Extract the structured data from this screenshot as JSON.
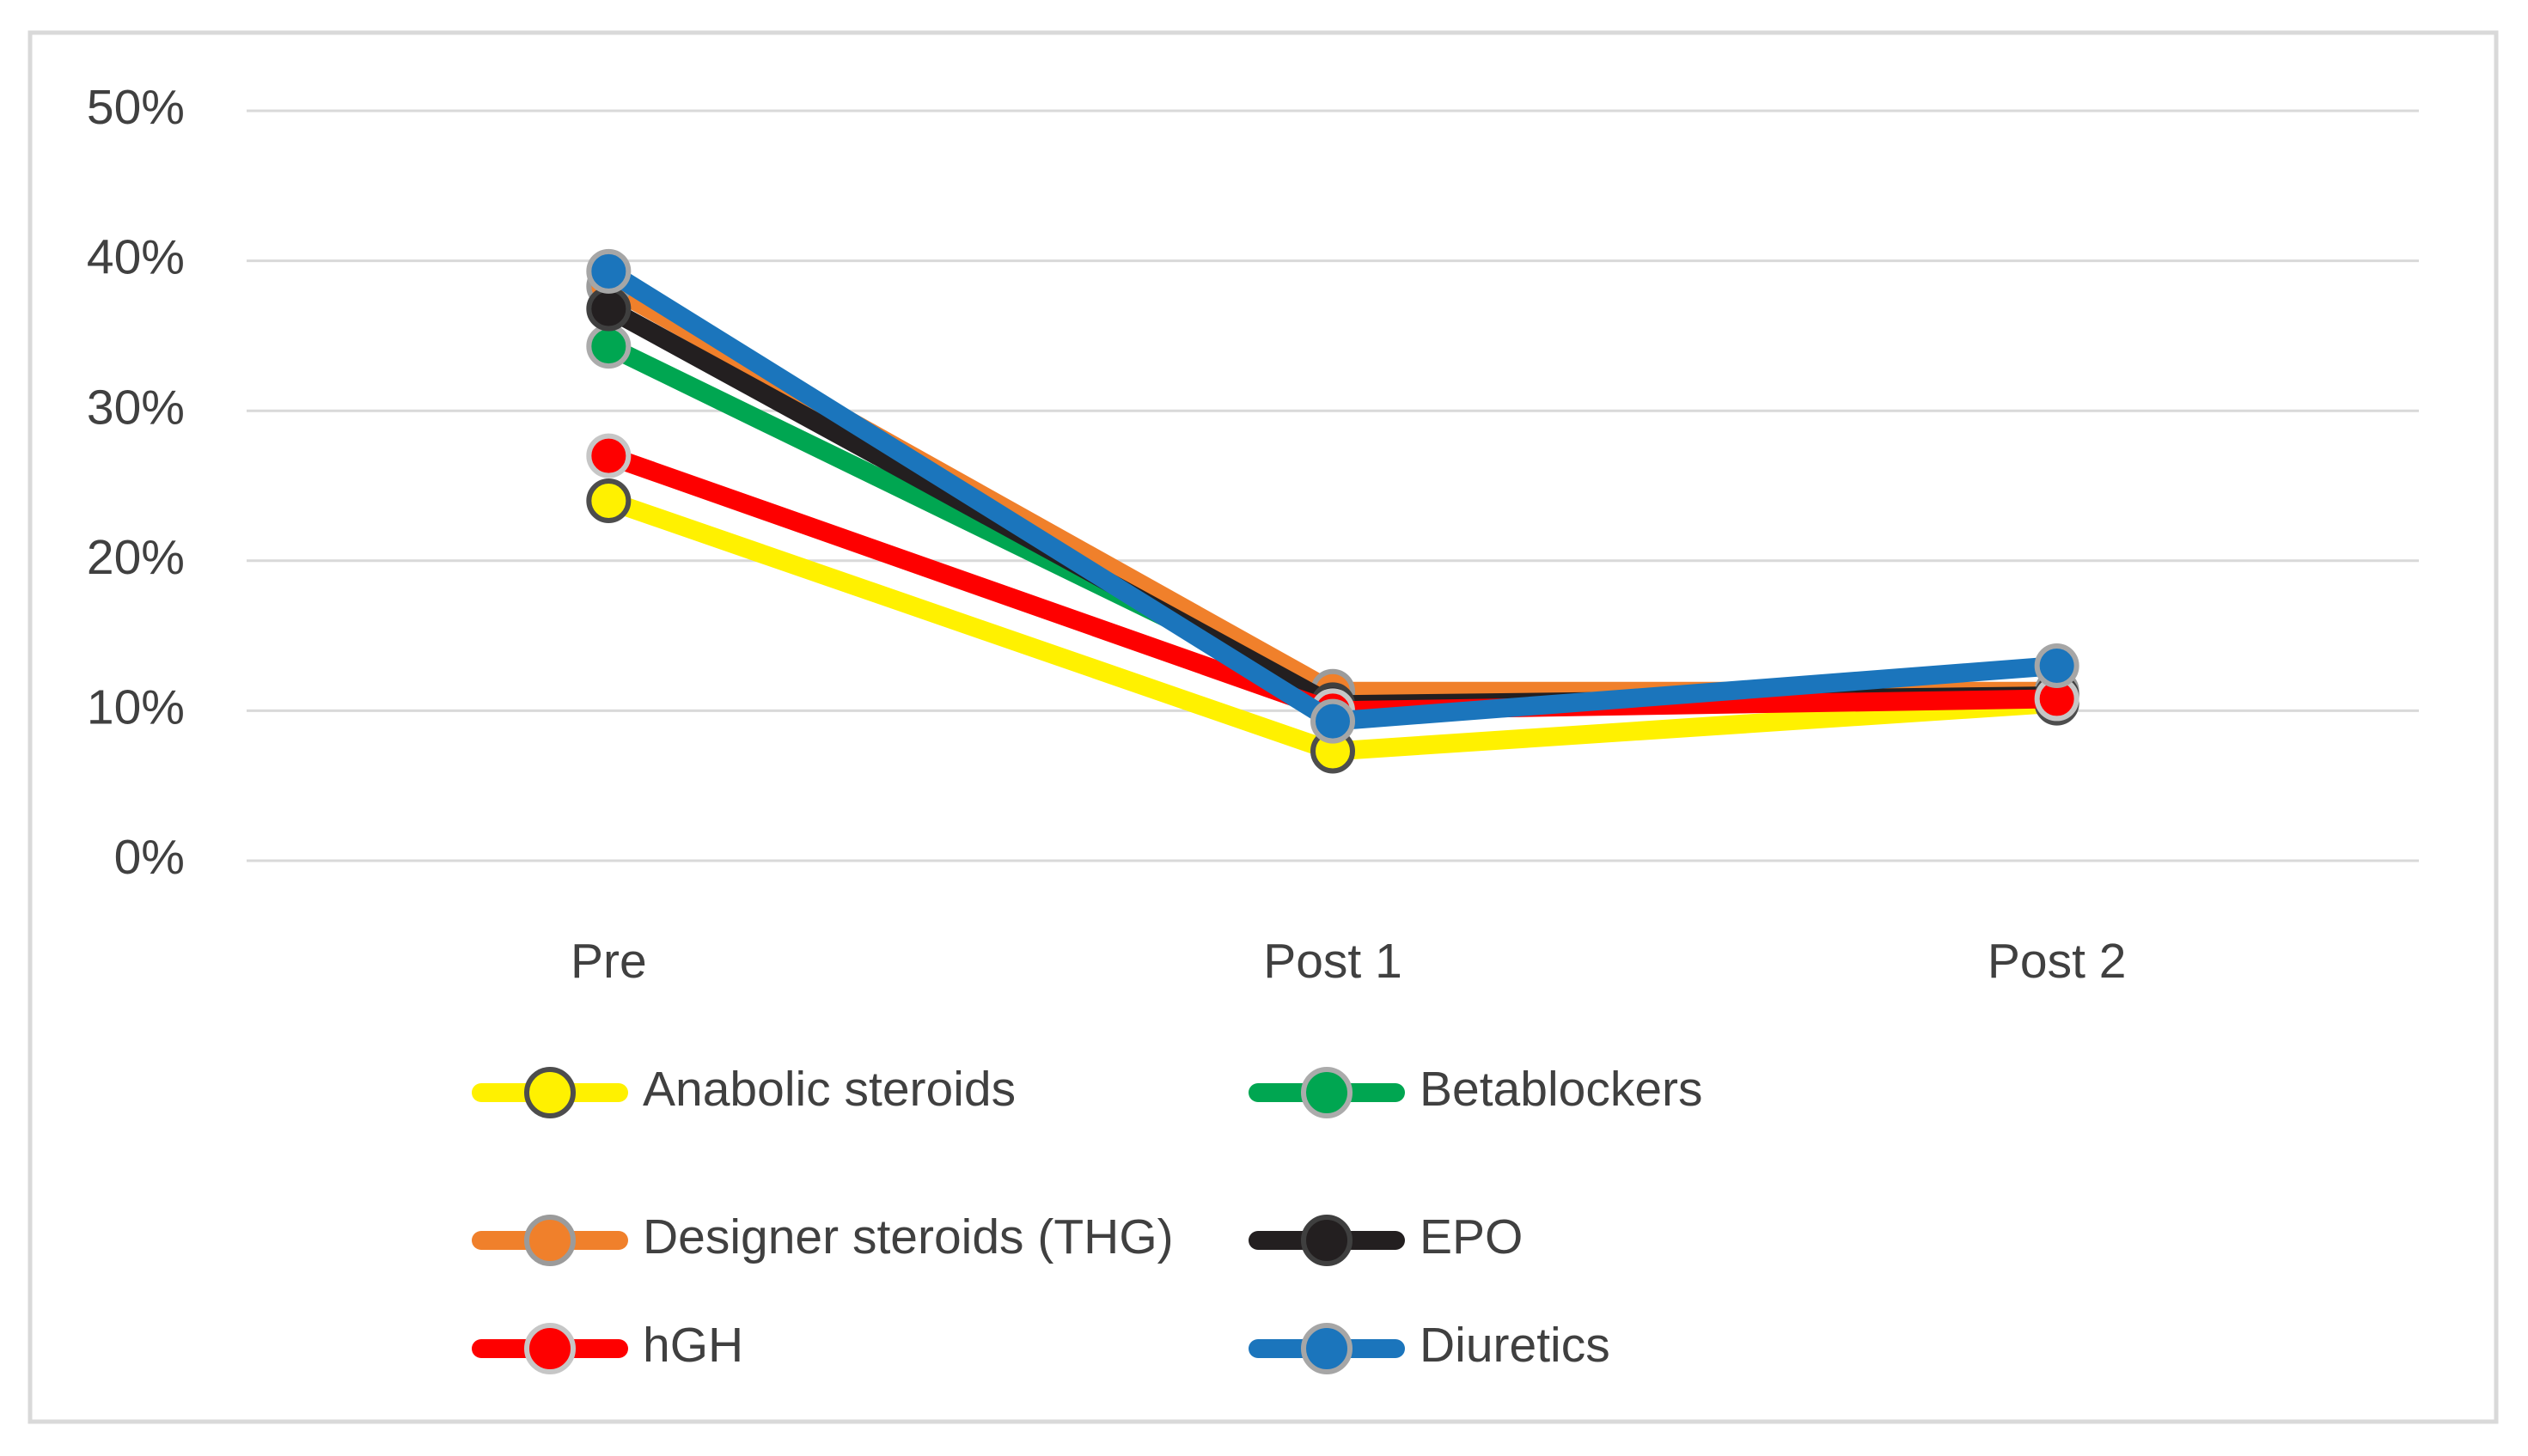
{
  "chart_data": {
    "type": "line",
    "categories": [
      "Pre",
      "Post 1",
      "Post 2"
    ],
    "series": [
      {
        "name": "Anabolic steroids",
        "values": [
          24.0,
          7.3,
          10.5
        ],
        "color": "#FFF100",
        "marker_fill": "#FFF100",
        "marker_ring": "#4D4D4D"
      },
      {
        "name": "Betablockers",
        "values": [
          34.3,
          10.8,
          11.0
        ],
        "color": "#00A651",
        "marker_fill": "#00A651",
        "marker_ring": "#ABABAB"
      },
      {
        "name": "Designer steroids (THG)",
        "values": [
          38.3,
          11.3,
          11.3
        ],
        "color": "#F0802B",
        "marker_fill": "#F0802B",
        "marker_ring": "#9B9B9B"
      },
      {
        "name": "EPO",
        "values": [
          36.8,
          10.4,
          11.0
        ],
        "color": "#231F20",
        "marker_fill": "#231F20",
        "marker_ring": "#3F3F3F"
      },
      {
        "name": "hGH",
        "values": [
          27.0,
          10.0,
          10.8
        ],
        "color": "#FE0000",
        "marker_fill": "#FE0000",
        "marker_ring": "#C6C6C6"
      },
      {
        "name": "Diuretics",
        "values": [
          39.3,
          9.3,
          13.0
        ],
        "color": "#1B75BC",
        "marker_fill": "#1B75BC",
        "marker_ring": "#A6A6A6"
      }
    ],
    "title": "",
    "xlabel": "",
    "ylabel": "",
    "ylim": [
      0,
      50
    ],
    "ytick_step": 10,
    "ytick_labels": [
      "0%",
      "10%",
      "20%",
      "30%",
      "40%",
      "50%"
    ],
    "grid": true,
    "legend_position": "bottom"
  },
  "style": {
    "background_color": "#FFFFFF",
    "frame_color": "#D9D9D9",
    "gridline_color": "#D9D9D9",
    "text_color": "#404040",
    "line_width": 22,
    "marker_radius": 23,
    "marker_ring_width": 6,
    "font_size": 57
  }
}
